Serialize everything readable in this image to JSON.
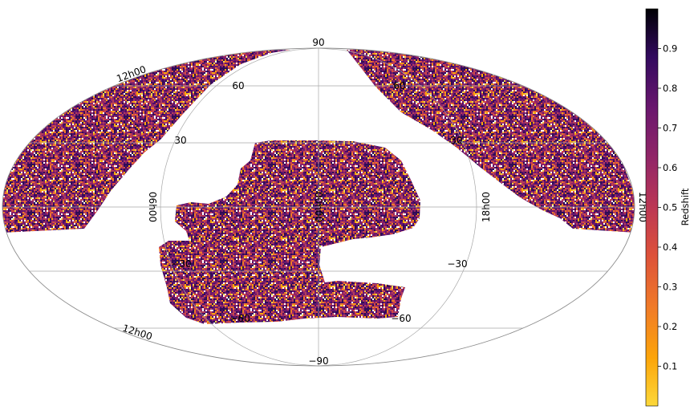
{
  "map": {
    "projection": "mollweide",
    "lat_labels": {
      "90": "90",
      "60": "60",
      "30": "30",
      "-30": "−30",
      "-60": "−60",
      "-90": "−90"
    },
    "lon_labels": {
      "left_top": "12h00",
      "left_bottom": "12h00",
      "inner_left": "06h00",
      "center": "00h00",
      "inner_right": "18h00",
      "right": "12h00"
    },
    "footprint_colors": [
      "#2e0d55",
      "#4b0c6b",
      "#6a176e",
      "#8d2369",
      "#b33d5b",
      "#d44a42",
      "#f07a28",
      "#fca50a",
      "#f4d742"
    ]
  },
  "colorbar": {
    "label": "Redshift",
    "cmap": "inferno_r",
    "range": [
      0.0,
      1.0
    ],
    "ticks": [
      {
        "value": 0.1,
        "label": "0.1"
      },
      {
        "value": 0.2,
        "label": "0.2"
      },
      {
        "value": 0.3,
        "label": "0.3"
      },
      {
        "value": 0.4,
        "label": "0.4"
      },
      {
        "value": 0.5,
        "label": "0.5"
      },
      {
        "value": 0.6,
        "label": "0.6"
      },
      {
        "value": 0.7,
        "label": "0.7"
      },
      {
        "value": 0.8,
        "label": "0.8"
      },
      {
        "value": 0.9,
        "label": "0.9"
      }
    ]
  }
}
